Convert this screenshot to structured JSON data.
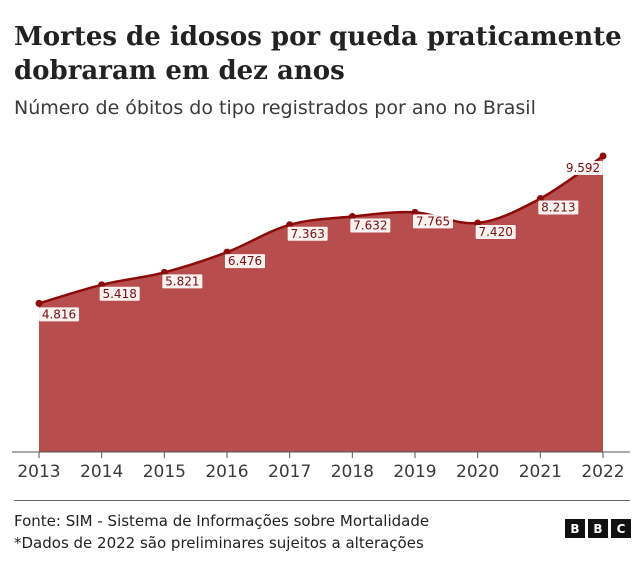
{
  "title": "Mortes de idosos por queda praticamente dobraram em dez anos",
  "subtitle": "Número de óbitos do tipo registrados por ano no Brasil",
  "footer": {
    "source": "Fonte: SIM - Sistema de Informações sobre Mortalidade",
    "note": "*Dados de 2022 são preliminares sujeitos a alterações"
  },
  "logo": [
    "B",
    "B",
    "C"
  ],
  "colors": {
    "area": "#b84d4d",
    "line": "#8b0a0a",
    "text": "#222222",
    "label_bg": "#ffffff"
  },
  "chart_data": {
    "type": "area",
    "x": [
      "2013",
      "2014",
      "2015",
      "2016",
      "2017",
      "2018",
      "2019",
      "2020",
      "2021",
      "2022"
    ],
    "values": [
      4816,
      5418,
      5821,
      6476,
      7363,
      7632,
      7765,
      7420,
      8213,
      9592
    ],
    "data_labels": [
      "4.816",
      "5.418",
      "5.821",
      "6.476",
      "7.363",
      "7.632",
      "7.765",
      "7.420",
      "8.213",
      "9.592"
    ],
    "ylim": [
      0,
      9592
    ],
    "grid": false,
    "xlabel": "",
    "ylabel": ""
  }
}
